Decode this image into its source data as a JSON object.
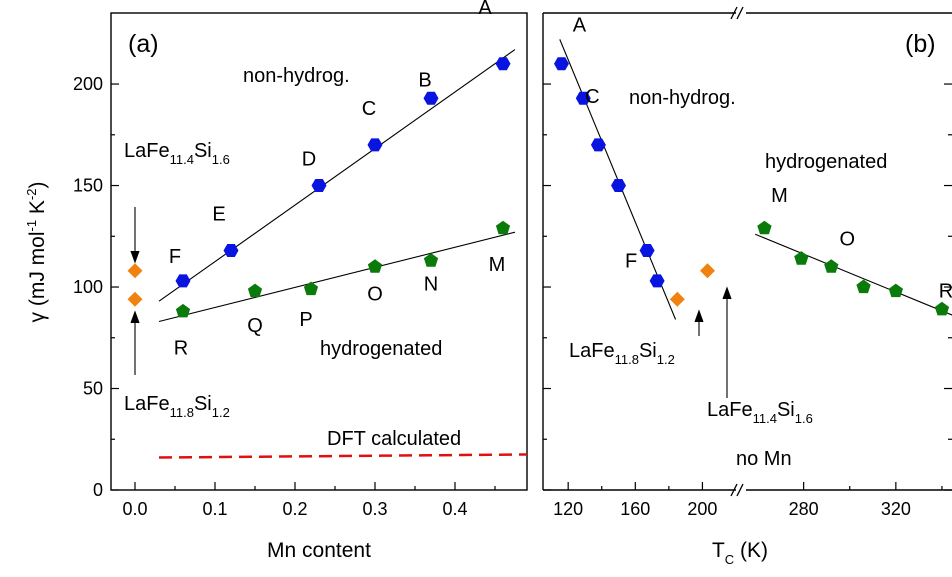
{
  "chart_data": [
    {
      "panel_tag": "(a)",
      "type": "scatter",
      "xlabel": "Mn content",
      "ylabel_text": "γ (mJ mol",
      "ylabel_sup1": "-1",
      "ylabel_mid": " K",
      "ylabel_sup2": "-2",
      "ylabel_end": ")",
      "xlim": [
        -0.03,
        0.49
      ],
      "ylim": [
        0,
        235
      ],
      "xticks": [
        "0.0",
        "0.1",
        "0.2",
        "0.3",
        "0.4"
      ],
      "xtick_values": [
        0,
        0.1,
        0.2,
        0.3,
        0.4
      ],
      "yticks": [
        "0",
        "50",
        "100",
        "150",
        "200"
      ],
      "ytick_values": [
        0,
        50,
        100,
        150,
        200
      ],
      "series": [
        {
          "label_text": "non-hydrog.",
          "color": "#0a14e0",
          "marker": "hexagon",
          "points": [
            {
              "x": 0.06,
              "y": 103,
              "label": "F"
            },
            {
              "x": 0.12,
              "y": 118,
              "label": "E"
            },
            {
              "x": 0.23,
              "y": 150,
              "label": "D"
            },
            {
              "x": 0.3,
              "y": 170,
              "label": "C"
            },
            {
              "x": 0.37,
              "y": 193,
              "label": "B"
            },
            {
              "x": 0.46,
              "y": 210,
              "label": "A"
            }
          ],
          "fit": {
            "x": [
              0.03,
              0.475
            ],
            "y": [
              93,
              217
            ]
          }
        },
        {
          "label_text": "hydrogenated",
          "color": "#0a7a0a",
          "marker": "pentagon",
          "points": [
            {
              "x": 0.06,
              "y": 88,
              "label": "R"
            },
            {
              "x": 0.15,
              "y": 98,
              "label": "Q"
            },
            {
              "x": 0.22,
              "y": 99,
              "label": "P"
            },
            {
              "x": 0.3,
              "y": 110,
              "label": "O"
            },
            {
              "x": 0.37,
              "y": 113,
              "label": "N"
            },
            {
              "x": 0.46,
              "y": 129,
              "label": "M"
            }
          ],
          "fit": {
            "x": [
              0.03,
              0.475
            ],
            "y": [
              83,
              127
            ]
          }
        },
        {
          "color": "#f0820f",
          "marker": "diamond",
          "points": [
            {
              "x": 0.0,
              "y": 108
            },
            {
              "x": 0.0,
              "y": 94
            }
          ]
        },
        {
          "label_text": "DFT calculated",
          "color": "#e01010",
          "style": "dashed",
          "x": [
            0.03,
            0.49
          ],
          "y": [
            16,
            17.5
          ]
        }
      ],
      "annotations": {
        "top": {
          "base": "LaFe",
          "s1": "11.4",
          "mid": "Si",
          "s2": "1.6"
        },
        "bottom": {
          "base": "LaFe",
          "s1": "11.8",
          "mid": "Si",
          "s2": "1.2"
        }
      }
    },
    {
      "panel_tag": "(b)",
      "type": "scatter",
      "xlabel_main": "T",
      "xlabel_sub": "C",
      "xlabel_unit": " (K)",
      "axis_break": true,
      "ylim": [
        0,
        235
      ],
      "xlim_left": [
        105,
        220
      ],
      "xlim_right": [
        255,
        350
      ],
      "xticks": [
        "120",
        "160",
        "200",
        "280",
        "320"
      ],
      "xtick_values": [
        120,
        160,
        200,
        280,
        320
      ],
      "series": [
        {
          "label_text": "non-hydrog.",
          "color": "#0a14e0",
          "marker": "hexagon",
          "points": [
            {
              "x": 116,
              "y": 210,
              "label": "A"
            },
            {
              "x": 129,
              "y": 193
            },
            {
              "x": 138,
              "y": 170,
              "label": "C"
            },
            {
              "x": 150,
              "y": 150
            },
            {
              "x": 167,
              "y": 118,
              "label": "F"
            },
            {
              "x": 173,
              "y": 103
            }
          ],
          "fit": {
            "x": [
              115,
              184
            ],
            "y": [
              222,
              84
            ]
          }
        },
        {
          "label_text": "hydrogenated",
          "color": "#0a7a0a",
          "marker": "pentagon",
          "points": [
            {
              "x": 263,
              "y": 129,
              "label": "M"
            },
            {
              "x": 279,
              "y": 114
            },
            {
              "x": 292,
              "y": 110,
              "label": "O"
            },
            {
              "x": 306,
              "y": 100
            },
            {
              "x": 320,
              "y": 98
            },
            {
              "x": 340,
              "y": 89,
              "label": "R"
            }
          ],
          "fit": {
            "x": [
              259,
              347
            ],
            "y": [
              126,
              85
            ]
          }
        },
        {
          "color": "#f0820f",
          "marker": "diamond",
          "points": [
            {
              "x": 185,
              "y": 94
            },
            {
              "x": 203,
              "y": 108
            }
          ]
        }
      ],
      "annotations": {
        "a118": {
          "base": "LaFe",
          "s1": "11.8",
          "mid": "Si",
          "s2": "1.2"
        },
        "a114": {
          "base": "LaFe",
          "s1": "11.4",
          "mid": "Si",
          "s2": "1.6"
        },
        "no_mn": "no Mn"
      }
    }
  ]
}
